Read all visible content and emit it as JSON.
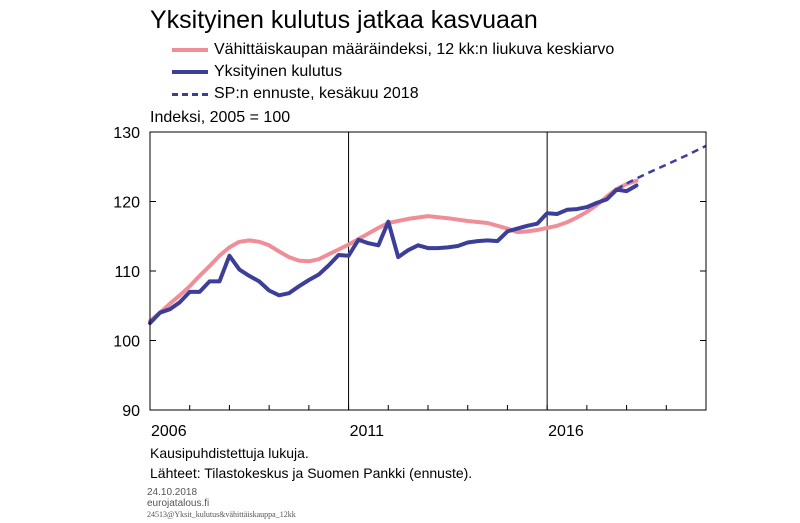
{
  "title": "Yksityinen kulutus jatkaa kasvuaan",
  "unit_label": "Indeksi, 2005 = 100",
  "notes": [
    "Kausipuhdistettuja lukuja.",
    "Lähteet: Tilastokeskus ja Suomen Pankki (ennuste)."
  ],
  "footer": {
    "date": "24.10.2018",
    "site": "eurojatalous.fi",
    "code": "24513@Yksit_kulutus&vähittäiskauppa_12kk"
  },
  "colors": {
    "retail": "#f08e98",
    "consumption": "#3c3f98",
    "forecast": "#3c3f98"
  },
  "chart_data": {
    "type": "line",
    "title": "Yksityinen kulutus jatkaa kasvuaan",
    "ylabel": "Indeksi, 2005 = 100",
    "ylim": [
      90,
      130
    ],
    "yticks": [
      90,
      100,
      110,
      120,
      130
    ],
    "xlim": [
      2006,
      2020
    ],
    "xticks": [
      {
        "value": 2006,
        "label": "2006"
      },
      {
        "value": 2011,
        "label": "2011"
      },
      {
        "value": 2016,
        "label": "2016"
      }
    ],
    "grid": "vertical at 2011 and 2016",
    "legend_position": "top",
    "series": [
      {
        "name": "Vähittäiskaupan määräindeksi, 12 kk:n liukuva keskiarvo",
        "color": "#f08e98",
        "style": "solid",
        "x": [
          2006.0,
          2006.25,
          2006.5,
          2006.75,
          2007.0,
          2007.25,
          2007.5,
          2007.75,
          2008.0,
          2008.25,
          2008.5,
          2008.75,
          2009.0,
          2009.25,
          2009.5,
          2009.75,
          2010.0,
          2010.25,
          2010.5,
          2010.75,
          2011.0,
          2011.25,
          2011.5,
          2011.75,
          2012.0,
          2012.5,
          2013.0,
          2013.5,
          2014.0,
          2014.5,
          2015.0,
          2015.25,
          2015.5,
          2015.75,
          2016.0,
          2016.25,
          2016.5,
          2016.75,
          2017.0,
          2017.25,
          2017.5,
          2017.75,
          2018.0,
          2018.25
        ],
        "y": [
          102.8,
          104.0,
          105.3,
          106.5,
          107.8,
          109.3,
          110.7,
          112.2,
          113.4,
          114.2,
          114.4,
          114.2,
          113.7,
          112.8,
          112.0,
          111.5,
          111.4,
          111.7,
          112.4,
          113.1,
          113.8,
          114.6,
          115.4,
          116.2,
          116.9,
          117.5,
          117.9,
          117.6,
          117.2,
          116.9,
          116.1,
          115.6,
          115.7,
          115.9,
          116.2,
          116.5,
          117.0,
          117.7,
          118.5,
          119.5,
          120.7,
          121.8,
          122.5,
          123.0
        ]
      },
      {
        "name": "Yksityinen kulutus",
        "color": "#3c3f98",
        "style": "solid",
        "x": [
          2006.0,
          2006.25,
          2006.5,
          2006.75,
          2007.0,
          2007.25,
          2007.5,
          2007.75,
          2008.0,
          2008.25,
          2008.5,
          2008.75,
          2009.0,
          2009.25,
          2009.5,
          2009.75,
          2010.0,
          2010.25,
          2010.5,
          2010.75,
          2011.0,
          2011.25,
          2011.5,
          2011.75,
          2012.0,
          2012.25,
          2012.5,
          2012.75,
          2013.0,
          2013.25,
          2013.5,
          2013.75,
          2014.0,
          2014.25,
          2014.5,
          2014.75,
          2015.0,
          2015.25,
          2015.5,
          2015.75,
          2016.0,
          2016.25,
          2016.5,
          2016.75,
          2017.0,
          2017.25,
          2017.5,
          2017.75,
          2018.0,
          2018.25
        ],
        "y": [
          102.5,
          104.0,
          104.5,
          105.5,
          107.0,
          107.0,
          108.5,
          108.5,
          112.2,
          110.2,
          109.3,
          108.5,
          107.2,
          106.5,
          106.8,
          107.8,
          108.7,
          109.5,
          110.8,
          112.3,
          112.2,
          114.5,
          114.0,
          113.7,
          117.1,
          112.0,
          113.0,
          113.7,
          113.3,
          113.3,
          113.4,
          113.6,
          114.1,
          114.3,
          114.4,
          114.3,
          115.7,
          116.1,
          116.5,
          116.8,
          118.3,
          118.2,
          118.8,
          118.9,
          119.2,
          119.8,
          120.3,
          121.7,
          121.5,
          122.3
        ]
      },
      {
        "name": "SP:n ennuste, kesäkuu 2018",
        "color": "#3c3f98",
        "style": "dashed",
        "x": [
          2017.75,
          2018.0,
          2018.5,
          2019.0,
          2019.5,
          2020.0
        ],
        "y": [
          121.7,
          122.6,
          124.0,
          125.3,
          126.6,
          128.0
        ]
      }
    ]
  }
}
